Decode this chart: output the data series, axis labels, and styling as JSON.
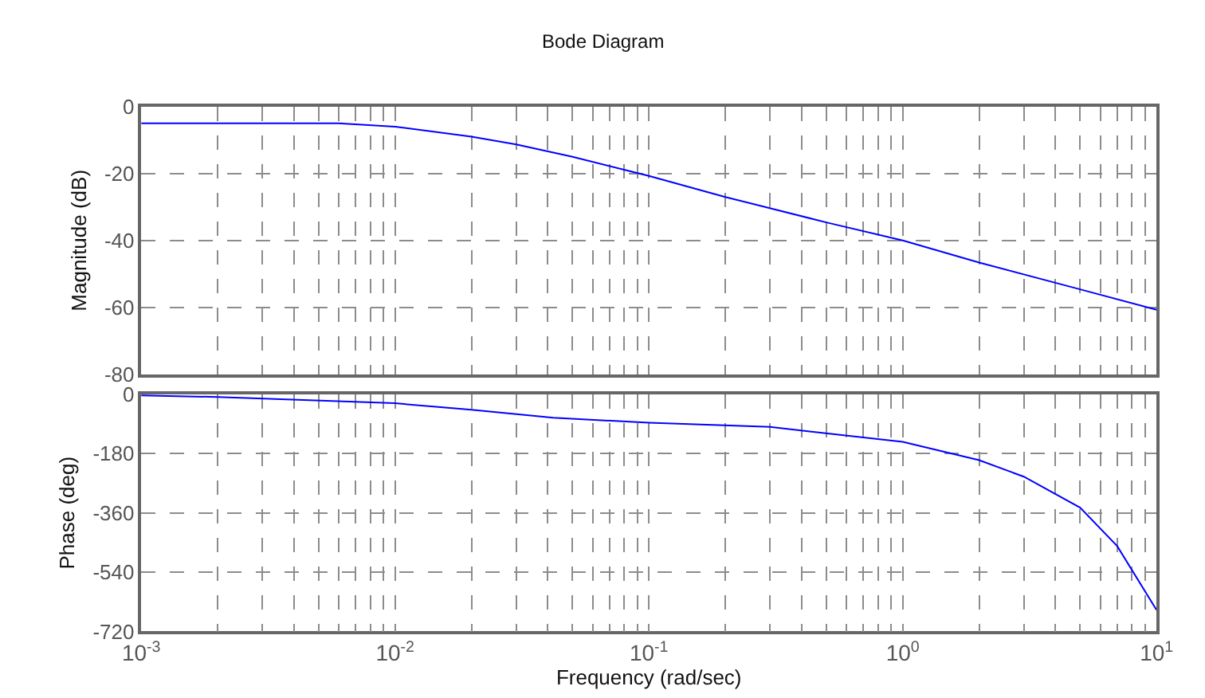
{
  "chart_data": [
    {
      "type": "line",
      "title": "Bode Diagram",
      "ylabel": "Magnitude (dB)",
      "log": "x",
      "grid": true,
      "tick_labels": "y",
      "marker": "none",
      "line_style": "solid",
      "x": [
        0.001,
        0.002,
        0.004,
        0.006,
        0.01,
        0.02,
        0.03,
        0.05,
        0.084,
        0.1,
        0.2,
        0.5,
        1,
        2,
        5,
        10
      ],
      "series": [
        {
          "color": "#0000ff",
          "values": [
            -5,
            -5,
            -5,
            -5,
            -6,
            -9,
            -11.3,
            -15,
            -19.3,
            -20.7,
            -27,
            -34.6,
            -40,
            -46.6,
            -54.6,
            -60.7
          ]
        }
      ],
      "xlim": [
        0.001,
        10
      ],
      "ylim": [
        -80,
        0
      ],
      "yticks": [
        -80,
        -60,
        -40,
        -20,
        0
      ],
      "xticks": [
        {
          "value": 0.001,
          "label": null
        },
        {
          "value": 0.01,
          "label": null
        },
        {
          "value": 0.1,
          "label": null
        },
        {
          "value": 1,
          "label": null
        },
        {
          "value": 10,
          "label": null
        }
      ]
    },
    {
      "type": "line",
      "xlabel": "Frequency (rad/sec)",
      "ylabel": "Phase (deg)",
      "log": "x",
      "grid": true,
      "marker": "none",
      "line_style": "solid",
      "x": [
        0.001,
        0.002,
        0.01,
        0.02,
        0.042,
        0.1,
        0.3,
        1,
        2,
        3,
        5,
        7,
        10
      ],
      "series": [
        {
          "color": "#0000ff",
          "values": [
            -3,
            -8,
            -27,
            -47,
            -71,
            -86,
            -99,
            -144,
            -200,
            -250,
            -344,
            -461,
            -655
          ]
        }
      ],
      "xlim": [
        0.001,
        10
      ],
      "ylim": [
        -720,
        0
      ],
      "yticks": [
        -720,
        -540,
        -360,
        -180,
        0
      ],
      "xticks": [
        {
          "value": 0.001,
          "label": "10$^{-3}$"
        },
        {
          "value": 0.01,
          "label": "10$^{-2}$"
        },
        {
          "value": 0.1,
          "label": "10$^{-1}$"
        },
        {
          "value": 1,
          "label": "10$^{0}$"
        },
        {
          "value": 10,
          "label": "10$^{1}$"
        }
      ]
    }
  ]
}
